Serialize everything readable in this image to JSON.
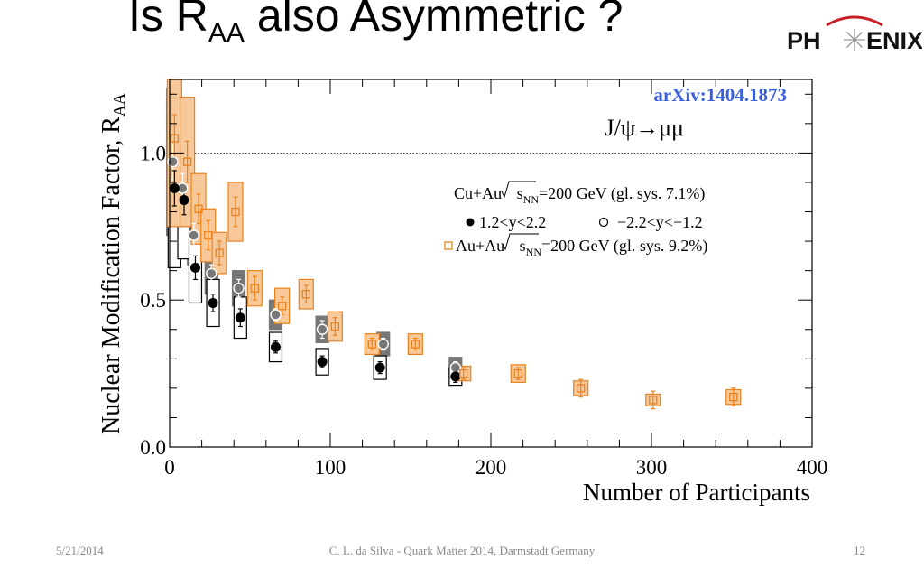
{
  "slide": {
    "title_prefix": "Is R",
    "title_sub": "AA",
    "title_suffix": " also Asymmetric ?",
    "logo_left": "PH",
    "logo_right": "ENIX",
    "footer_date": "5/21/2014",
    "footer_center": "C. L. da Silva - Quark Matter 2014, Darmstadt Germany",
    "footer_page": "12"
  },
  "chart_data": {
    "type": "scatter",
    "title": "",
    "xlabel": "Number of Participants",
    "ylabel": "Nuclear Modification Factor, R",
    "ylabel_sub": "AA",
    "xlim": [
      0,
      400
    ],
    "ylim": [
      0,
      1.25
    ],
    "x_ticks": [
      0,
      100,
      200,
      300,
      400
    ],
    "x_tick_labels": [
      "0",
      "100",
      "200",
      "300",
      "400"
    ],
    "y_ticks": [
      0,
      0.5,
      1.0
    ],
    "y_tick_labels": [
      "0.0",
      "0.5",
      "1.0"
    ],
    "reference_line": 1.0,
    "grid": false,
    "annotations": {
      "arxiv": "arXiv:1404.1873",
      "channel": "J/ψ→μμ",
      "cuau_label": "Cu+Au",
      "cuau_energy": "=200 GeV (gl. sys. 7.1%)",
      "forward_label": "1.2<y<2.2",
      "backward_label": "−2.2<y<−1.2",
      "auau_label": "Au+Au",
      "auau_energy": "=200 GeV (gl. sys. 9.2%)",
      "sqrt_s": "s",
      "nn": "NN"
    },
    "colors": {
      "auau": "#e8821e",
      "auau_fill": "#f7c99a",
      "cuau_box_fill": "#777777",
      "arxiv": "#3a5fdc"
    },
    "series": [
      {
        "name": "1.2<y<2.2",
        "marker": "filled-circle",
        "points": [
          {
            "x": 3,
            "y": 0.88,
            "err": 0.06,
            "sys": 0.27
          },
          {
            "x": 9,
            "y": 0.84,
            "err": 0.05,
            "sys": 0.2
          },
          {
            "x": 16,
            "y": 0.61,
            "err": 0.04,
            "sys": 0.12
          },
          {
            "x": 27,
            "y": 0.49,
            "err": 0.03,
            "sys": 0.08
          },
          {
            "x": 44,
            "y": 0.44,
            "err": 0.03,
            "sys": 0.07
          },
          {
            "x": 66,
            "y": 0.34,
            "err": 0.02,
            "sys": 0.05
          },
          {
            "x": 95,
            "y": 0.29,
            "err": 0.02,
            "sys": 0.045
          },
          {
            "x": 131,
            "y": 0.27,
            "err": 0.02,
            "sys": 0.04
          },
          {
            "x": 178,
            "y": 0.24,
            "err": 0.02,
            "sys": 0.03
          }
        ]
      },
      {
        "name": "−2.2<y<−1.2",
        "marker": "open-circle",
        "points": [
          {
            "x": 2,
            "y": 0.97,
            "err": 0.06,
            "sys": 0.25
          },
          {
            "x": 8,
            "y": 0.88,
            "err": 0.05,
            "sys": 0.18
          },
          {
            "x": 15,
            "y": 0.72,
            "err": 0.04,
            "sys": 0.1
          },
          {
            "x": 26,
            "y": 0.59,
            "err": 0.03,
            "sys": 0.07
          },
          {
            "x": 43,
            "y": 0.54,
            "err": 0.03,
            "sys": 0.06
          },
          {
            "x": 66,
            "y": 0.45,
            "err": 0.02,
            "sys": 0.05
          },
          {
            "x": 95,
            "y": 0.4,
            "err": 0.03,
            "sys": 0.045
          },
          {
            "x": 133,
            "y": 0.35,
            "err": 0.02,
            "sys": 0.04
          },
          {
            "x": 178,
            "y": 0.27,
            "err": 0.02,
            "sys": 0.035
          }
        ]
      },
      {
        "name": "Au+Au",
        "marker": "open-square",
        "points": [
          {
            "x": 3,
            "y": 1.05,
            "err": 0.08,
            "sys": 0.3
          },
          {
            "x": 11,
            "y": 0.97,
            "err": 0.07,
            "sys": 0.22
          },
          {
            "x": 18,
            "y": 0.81,
            "err": 0.05,
            "sys": 0.12
          },
          {
            "x": 24,
            "y": 0.72,
            "err": 0.05,
            "sys": 0.09
          },
          {
            "x": 31,
            "y": 0.66,
            "err": 0.04,
            "sys": 0.07
          },
          {
            "x": 41,
            "y": 0.8,
            "err": 0.05,
            "sys": 0.1
          },
          {
            "x": 53,
            "y": 0.54,
            "err": 0.04,
            "sys": 0.06
          },
          {
            "x": 70,
            "y": 0.48,
            "err": 0.03,
            "sys": 0.06
          },
          {
            "x": 85,
            "y": 0.52,
            "err": 0.03,
            "sys": 0.05
          },
          {
            "x": 103,
            "y": 0.41,
            "err": 0.03,
            "sys": 0.05
          },
          {
            "x": 126,
            "y": 0.35,
            "err": 0.02,
            "sys": 0.035
          },
          {
            "x": 153,
            "y": 0.35,
            "err": 0.02,
            "sys": 0.035
          },
          {
            "x": 183,
            "y": 0.25,
            "err": 0.02,
            "sys": 0.025
          },
          {
            "x": 217,
            "y": 0.25,
            "err": 0.02,
            "sys": 0.03
          },
          {
            "x": 256,
            "y": 0.2,
            "err": 0.03,
            "sys": 0.025
          },
          {
            "x": 301,
            "y": 0.16,
            "err": 0.03,
            "sys": 0.02
          },
          {
            "x": 351,
            "y": 0.17,
            "err": 0.03,
            "sys": 0.025
          }
        ]
      }
    ]
  }
}
